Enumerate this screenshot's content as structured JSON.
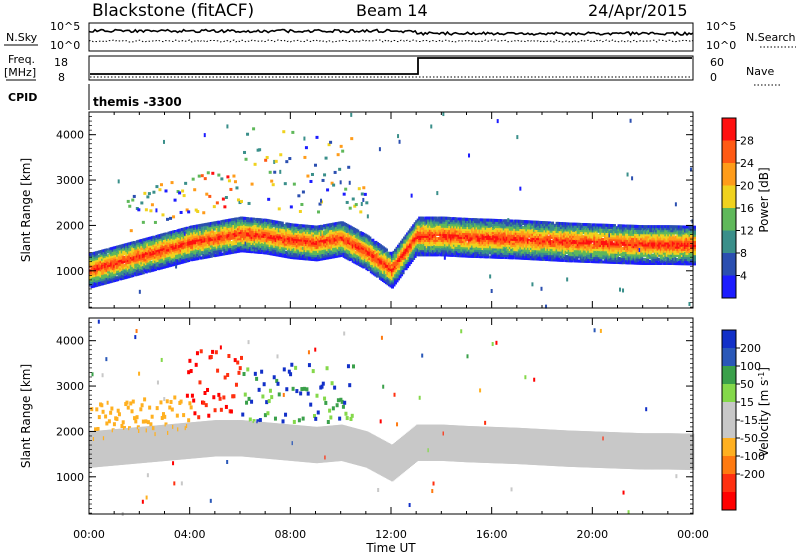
{
  "header": {
    "radar": "Blackstone (fitACF)",
    "beam": "Beam 14",
    "date": "24/Apr/2015"
  },
  "colors": {
    "power_scale": [
      "#1c1cff",
      "#2b4fb0",
      "#3a8f8a",
      "#5fb85a",
      "#f0d21e",
      "#ff9c1a",
      "#ff5a14",
      "#ff1010"
    ],
    "velocity_scale": [
      "#1230c8",
      "#2a58b8",
      "#3aa04a",
      "#84d84a",
      "#c8c8c8",
      "#c8c8c8",
      "#ffb020",
      "#ff7a10",
      "#ff3010",
      "#ff0000"
    ],
    "ground_scatter": "#c8c8c8"
  },
  "panels": {
    "nsky": {
      "label_left": "N.Sky",
      "ticks_left": [
        "10^5",
        "10^0"
      ],
      "label_right": "N.Search",
      "ticks_right": [
        "10^5",
        "10^0"
      ]
    },
    "freq": {
      "label_left": "Freq.",
      "unit_left": "[MHz]",
      "ticks_left": [
        "18",
        "8"
      ],
      "label_right": "Nave",
      "ticks_right": [
        "60",
        "0"
      ]
    },
    "cpid": {
      "label": "CPID",
      "value": "themis -3300"
    }
  },
  "chart_data": [
    {
      "type": "heatmap",
      "title": "",
      "xlabel": "Time UT",
      "ylabel": "Slant Range [km]",
      "xlim_hours": [
        0,
        24
      ],
      "ylim": [
        180,
        4500
      ],
      "x_ticks": [
        "00:00",
        "04:00",
        "08:00",
        "12:00",
        "16:00",
        "20:00",
        "00:00"
      ],
      "y_ticks": [
        1000,
        2000,
        3000,
        4000
      ],
      "colorbar": {
        "label": "Power [dB]",
        "ticks": [
          4,
          8,
          12,
          16,
          20,
          24,
          28
        ],
        "range": [
          0,
          30
        ]
      },
      "series": [
        {
          "x": [
            0,
            1,
            2,
            3,
            4,
            5,
            6,
            7,
            8,
            9,
            10,
            11,
            12,
            13,
            14,
            15,
            16,
            17,
            18,
            19,
            20,
            21,
            22,
            23,
            24
          ],
          "y": [
            1000,
            1150,
            1300,
            1450,
            1600,
            1700,
            1800,
            1750,
            1650,
            1600,
            1700,
            1400,
            1000,
            1750,
            1750,
            1720,
            1700,
            1680,
            1650,
            1620,
            1600,
            1580,
            1560,
            1560,
            1550
          ]
        }
      ]
    },
    {
      "type": "heatmap",
      "title": "",
      "xlabel": "Time UT",
      "ylabel": "Slant Range [km]",
      "xlim_hours": [
        0,
        24
      ],
      "ylim": [
        180,
        4500
      ],
      "x_ticks": [
        "00:00",
        "04:00",
        "08:00",
        "12:00",
        "16:00",
        "20:00",
        "00:00"
      ],
      "y_ticks": [
        1000,
        2000,
        3000,
        4000
      ],
      "colorbar": {
        "label": "Velocity [m s^-1]",
        "ticks": [
          200,
          100,
          50,
          15,
          -15,
          -50,
          -100,
          -200
        ]
      },
      "series": [
        {
          "x": [
            0,
            1,
            2,
            3,
            4,
            5,
            6,
            7,
            8,
            9,
            10,
            11,
            12,
            13,
            14,
            15,
            16,
            17,
            18,
            19,
            20,
            21,
            22,
            23,
            24
          ],
          "y": [
            1600,
            1650,
            1700,
            1750,
            1800,
            1850,
            1850,
            1800,
            1750,
            1700,
            1750,
            1600,
            1300,
            1750,
            1750,
            1720,
            1700,
            1680,
            1650,
            1620,
            1600,
            1580,
            1560,
            1560,
            1550
          ]
        }
      ]
    }
  ]
}
